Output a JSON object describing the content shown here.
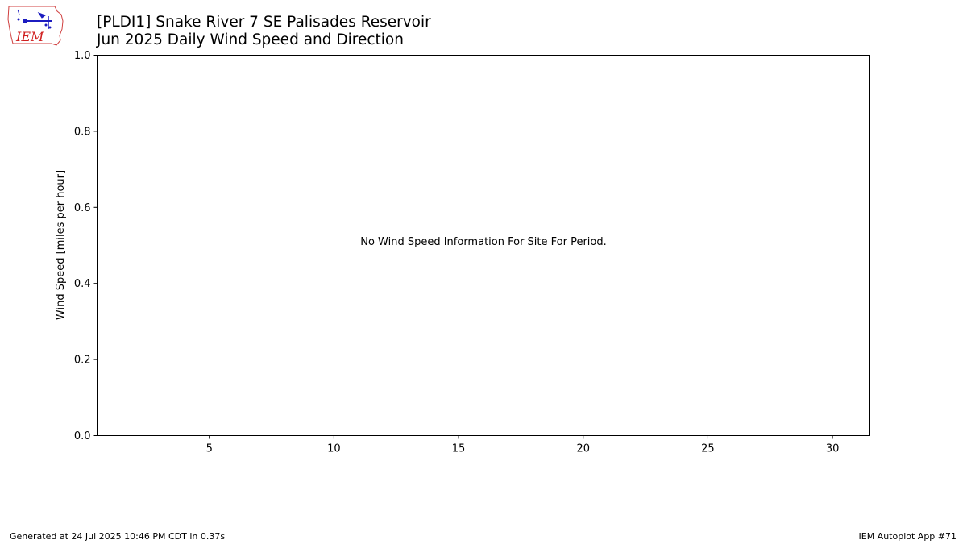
{
  "header": {
    "title_line1": "[PLDI1] Snake River 7 SE Palisades Reservoir",
    "title_line2": "Jun 2025 Daily Wind Speed and Direction"
  },
  "logo": {
    "text": "IEM",
    "icon": "iem-iowa-logo-icon"
  },
  "footer": {
    "generated": "Generated at 24 Jul 2025 10:46 PM CDT in 0.37s",
    "app": "IEM Autoplot App #71"
  },
  "chart_data": {
    "type": "bar",
    "title": "[PLDI1] Snake River 7 SE Palisades Reservoir\nJun 2025 Daily Wind Speed and Direction",
    "xlabel": "",
    "ylabel": "Wind Speed [miles per hour]",
    "xlim": [
      0.5,
      31.5
    ],
    "ylim": [
      0.0,
      1.0
    ],
    "xticks": [
      5,
      10,
      15,
      20,
      25,
      30
    ],
    "xtick_labels": [
      "5",
      "10",
      "15",
      "20",
      "25",
      "30"
    ],
    "yticks": [
      0.0,
      0.2,
      0.4,
      0.6,
      0.8,
      1.0
    ],
    "ytick_labels": [
      "0.0",
      "0.2",
      "0.4",
      "0.6",
      "0.8",
      "1.0"
    ],
    "series": [],
    "annotation": "No Wind Speed Information For Site For Period.",
    "grid": false,
    "legend": "none"
  }
}
